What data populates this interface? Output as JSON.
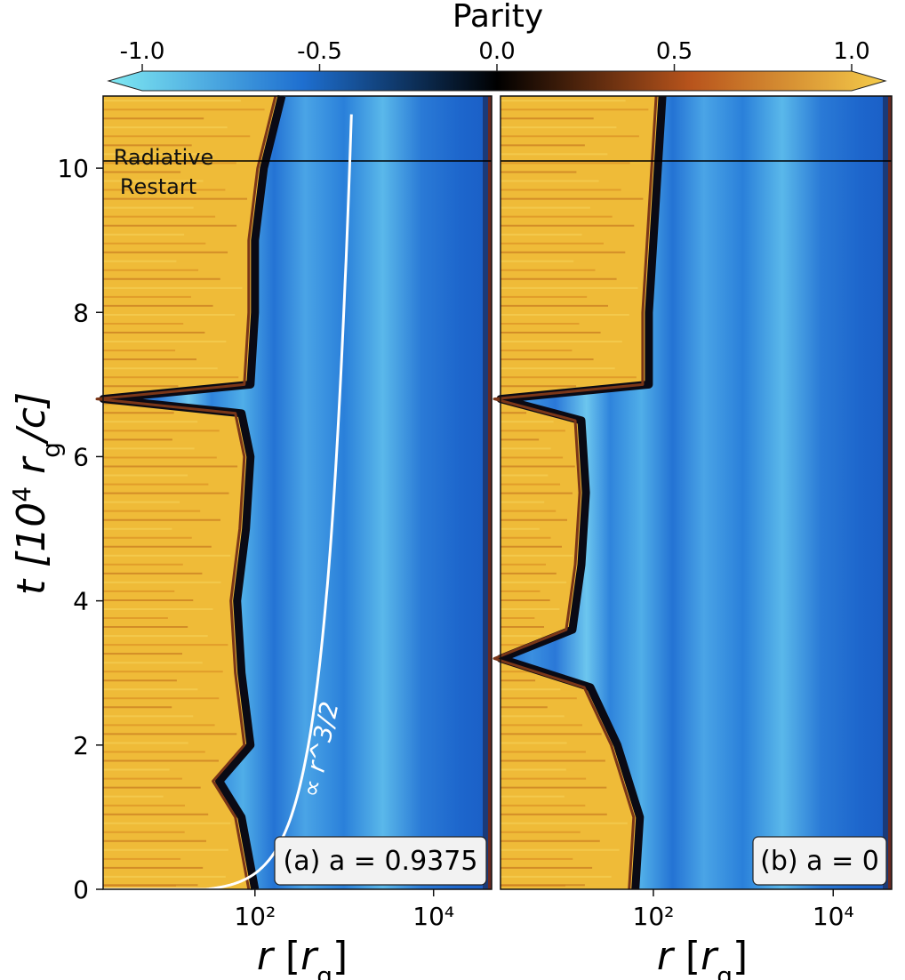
{
  "chart_data": {
    "type": "heatmap",
    "colorbar": {
      "label": "Parity",
      "ticks": [
        "-1.0",
        "-0.5",
        "0.0",
        "0.5",
        "1.0"
      ],
      "tick_values": [
        -1.0,
        -0.5,
        0.0,
        0.5,
        1.0
      ],
      "range": [
        -1.0,
        1.0
      ],
      "extend": "both",
      "colors": [
        "#7fe9f2",
        "#1e6fd0",
        "#000000",
        "#b8541c",
        "#f5cc4a"
      ]
    },
    "ylabel": "t [10^4 r_g/c]",
    "ylim": [
      0,
      11
    ],
    "yticks": [
      0,
      2,
      4,
      6,
      8,
      10
    ],
    "xscale": "log",
    "xlim_log10": [
      0.3,
      4.65
    ],
    "xticks_log10": [
      2,
      4
    ],
    "xtick_labels": [
      "10²",
      "10⁴"
    ],
    "xlabel": "r [r_g]",
    "radiative_restart_t": 10.1,
    "restart_label_line1": "Radiative",
    "restart_label_line2": "Restart",
    "panels": [
      {
        "id": "a",
        "label": "(a) a = 0.9375",
        "spin": 0.9375,
        "xlabel": "r [r_g]",
        "curve_label": "∝ r^3/2",
        "curve_exponent": 1.5,
        "curve_r0_log10": 1.45,
        "curve_t_at_r100": 0.22,
        "transition_front": [
          {
            "t": 0.0,
            "log_r": 2.0
          },
          {
            "t": 1.0,
            "log_r": 1.85
          },
          {
            "t": 1.5,
            "log_r": 1.6
          },
          {
            "t": 2.0,
            "log_r": 1.95
          },
          {
            "t": 3.0,
            "log_r": 1.85
          },
          {
            "t": 4.0,
            "log_r": 1.8
          },
          {
            "t": 5.0,
            "log_r": 1.9
          },
          {
            "t": 6.0,
            "log_r": 1.95
          },
          {
            "t": 6.6,
            "log_r": 1.85
          },
          {
            "t": 6.8,
            "log_r": 0.3
          },
          {
            "t": 7.0,
            "log_r": 1.95
          },
          {
            "t": 8.0,
            "log_r": 2.0
          },
          {
            "t": 9.0,
            "log_r": 2.0
          },
          {
            "t": 10.0,
            "log_r": 2.1
          },
          {
            "t": 11.0,
            "log_r": 2.3
          }
        ]
      },
      {
        "id": "b",
        "label": "(b) a = 0",
        "spin": 0,
        "xlabel": "r [r_g]",
        "transition_front": [
          {
            "t": 0.0,
            "log_r": 1.8
          },
          {
            "t": 1.0,
            "log_r": 1.85
          },
          {
            "t": 2.0,
            "log_r": 1.6
          },
          {
            "t": 2.8,
            "log_r": 1.3
          },
          {
            "t": 3.2,
            "log_r": 0.3
          },
          {
            "t": 3.6,
            "log_r": 1.1
          },
          {
            "t": 4.5,
            "log_r": 1.2
          },
          {
            "t": 5.5,
            "log_r": 1.25
          },
          {
            "t": 6.5,
            "log_r": 1.2
          },
          {
            "t": 6.8,
            "log_r": 0.3
          },
          {
            "t": 7.0,
            "log_r": 1.95
          },
          {
            "t": 8.0,
            "log_r": 1.95
          },
          {
            "t": 9.0,
            "log_r": 2.0
          },
          {
            "t": 10.0,
            "log_r": 2.05
          },
          {
            "t": 11.0,
            "log_r": 2.1
          }
        ]
      }
    ]
  }
}
